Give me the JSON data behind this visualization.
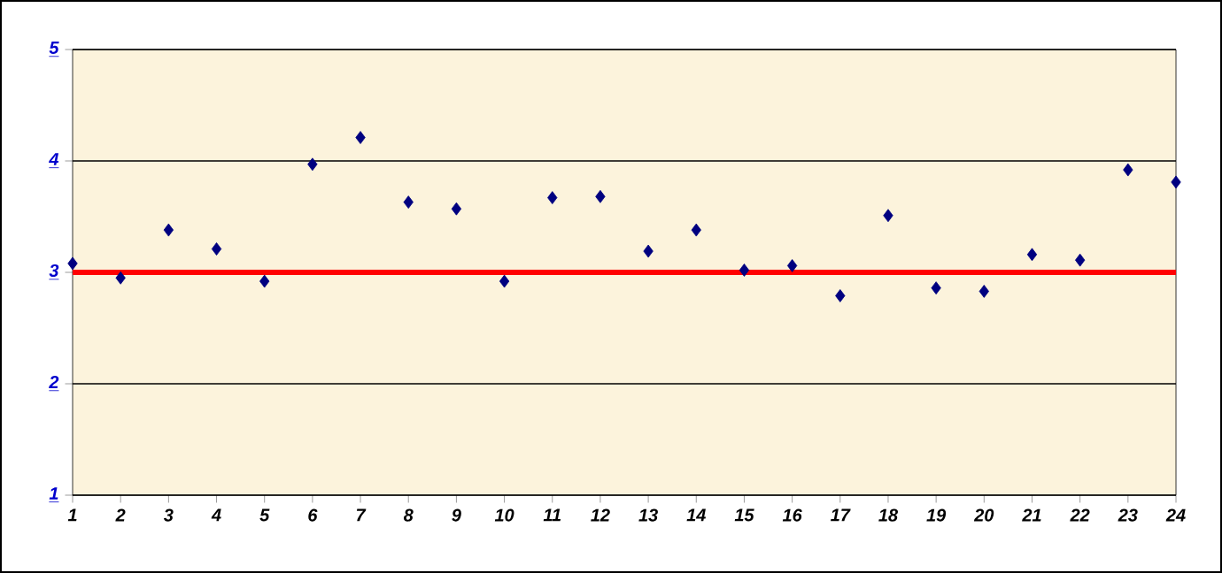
{
  "chart_data": {
    "type": "scatter",
    "x": [
      1,
      2,
      3,
      4,
      5,
      6,
      7,
      8,
      9,
      10,
      11,
      12,
      13,
      14,
      15,
      16,
      17,
      18,
      19,
      20,
      21,
      22,
      23,
      24
    ],
    "values": [
      3.08,
      2.95,
      3.38,
      3.21,
      2.92,
      3.97,
      4.21,
      3.63,
      3.57,
      2.92,
      3.67,
      3.68,
      3.19,
      3.38,
      3.02,
      3.06,
      2.79,
      3.51,
      2.86,
      2.83,
      3.16,
      3.11,
      3.92,
      3.81
    ],
    "color": "#000080",
    "marker": "diamond",
    "xlim": [
      1,
      24
    ],
    "xticks": [
      1,
      2,
      3,
      4,
      5,
      6,
      7,
      8,
      9,
      10,
      11,
      12,
      13,
      14,
      15,
      16,
      17,
      18,
      19,
      20,
      21,
      22,
      23,
      24
    ],
    "ylim": [
      1,
      5
    ],
    "yticks": [
      1,
      2,
      3,
      4,
      5
    ],
    "grid": "y",
    "ref_lines": [
      {
        "axis": "y",
        "value": 3,
        "color": "#ff0000"
      }
    ]
  }
}
